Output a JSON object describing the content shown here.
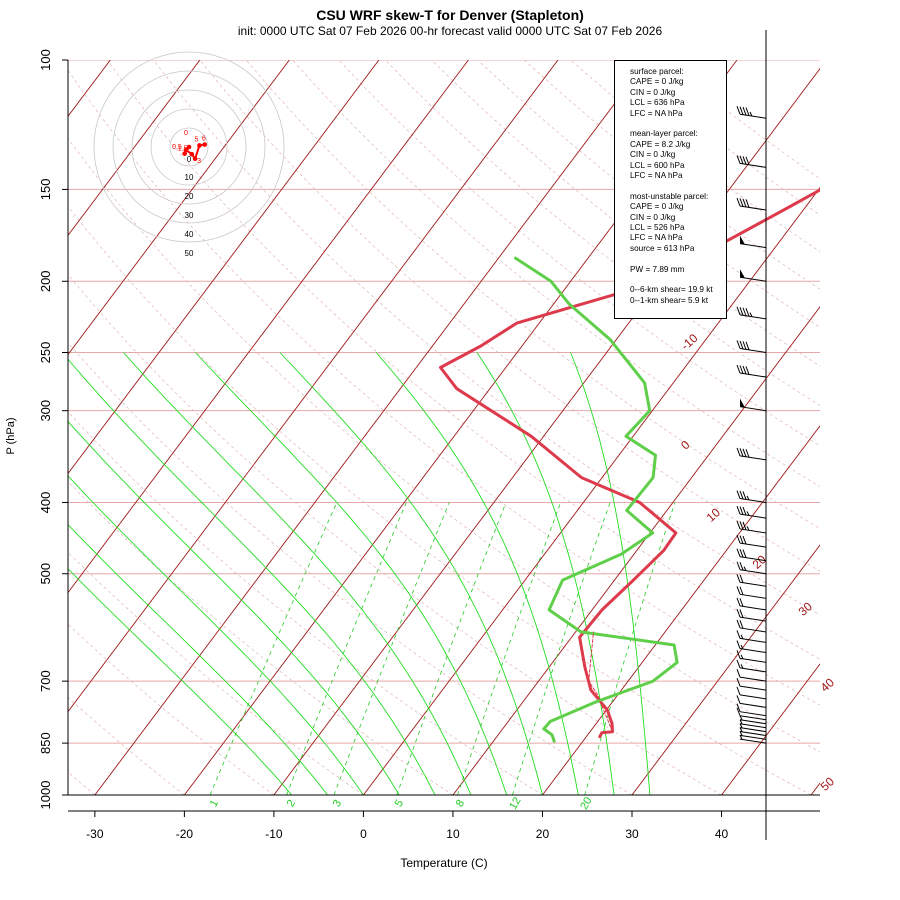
{
  "title": "CSU WRF skew-T for Denver (Stapleton)",
  "subtitle": "init: 0000 UTC Sat 07 Feb 2026    00-hr forecast valid 0000 UTC Sat 07 Feb 2026",
  "info_box": {
    "surface": [
      "surface parcel:",
      "CAPE = 0 J/kg",
      "CIN = 0 J/kg",
      "LCL = 636 hPa",
      "LFC = NA hPa"
    ],
    "mean_layer": [
      "mean-layer parcel:",
      "CAPE = 8.2 J/kg",
      "CIN = 0 J/kg",
      "LCL = 600 hPa",
      "LFC = NA hPa"
    ],
    "most_unstable": [
      "most-unstable parcel:",
      "CAPE = 0 J/kg",
      "CIN = 0 J/kg",
      "LCL = 526 hPa",
      "LFC = NA hPa",
      "source = 613 hPa"
    ],
    "pw": "PW =  7.89 mm",
    "shear": [
      "0--6-km shear= 19.9 kt",
      "0--1-km shear= 5.9 kt"
    ]
  },
  "colors": {
    "temperature": "#dd3a4c",
    "dewpoint": "#5fcf4a",
    "isotherm": "#a01818",
    "isobar": "#e6a8a8",
    "dry_adiabat": "#e3b3b3",
    "moist_adiabat": "#22dd22",
    "mixing_ratio": "#22cc22",
    "hodograph": "#ff0000",
    "hodo_ring": "#c8c8c8"
  },
  "chart_data": {
    "type": "line",
    "xlabel": "Temperature (C)",
    "ylabel": "P (hPa)",
    "xlim": [
      -33,
      51
    ],
    "ylim_hpa": [
      1000,
      100
    ],
    "x_ticks": [
      -30,
      -20,
      -10,
      0,
      10,
      20,
      30,
      40
    ],
    "y_ticks": [
      100,
      150,
      200,
      250,
      300,
      400,
      500,
      700,
      850,
      1000
    ],
    "isobars_hpa": [
      100,
      150,
      200,
      250,
      300,
      400,
      500,
      700,
      850,
      1000
    ],
    "isotherm_labels": [
      -10,
      0,
      10,
      20,
      30,
      40,
      50
    ],
    "mixing_ratio_labels": [
      1,
      2,
      3,
      5,
      8,
      12,
      20
    ],
    "series": [
      {
        "name": "temperature",
        "values_temp_c": [
          21.5,
          21.4,
          22.5,
          21.8,
          20.8,
          20.1,
          16.6,
          14.0,
          10.9,
          11.1,
          12.1,
          13.0,
          12.9,
          6.3,
          -2.3,
          -11.4,
          -23.7,
          -27.3,
          -24.6,
          -22.5,
          -11.4,
          -1.7,
          12.6
        ],
        "values_p_hpa": [
          833,
          823,
          820,
          800,
          780,
          766,
          720,
          670,
          610,
          560,
          510,
          465,
          440,
          400,
          370,
          325,
          280,
          262,
          245,
          228,
          203,
          158,
          108
        ]
      },
      {
        "name": "dewpoint",
        "values_temp_c": [
          16.8,
          16.0,
          14.6,
          14.7,
          18.0,
          22.8,
          23.9,
          22.1,
          10.6,
          5.2,
          4.2,
          8.6,
          10.3,
          5.5,
          5.7,
          4.1,
          -0.8,
          -0.3,
          -3.2,
          -10.7,
          -18.2,
          -22.2,
          -28.1
        ],
        "values_p_hpa": [
          845,
          828,
          813,
          794,
          749,
          700,
          660,
          625,
          600,
          560,
          510,
          470,
          440,
          410,
          370,
          345,
          325,
          300,
          275,
          240,
          215,
          200,
          186
        ]
      },
      {
        "name": "parcel",
        "values_temp_c": [
          22.5,
          17.7,
          15.6,
          12.0
        ],
        "values_p_hpa": [
          820,
          730,
          700,
          600
        ]
      }
    ],
    "wind_barbs": {
      "units": "kt",
      "speed_kt": [
        5,
        5,
        5,
        5,
        5,
        5,
        10,
        10,
        10,
        10,
        10,
        10,
        15,
        15,
        15,
        15,
        20,
        20,
        20,
        20,
        20,
        25,
        30,
        30,
        35,
        35,
        35,
        40,
        50,
        40,
        40,
        45,
        50,
        50,
        40,
        40,
        45
      ],
      "p_hpa": [
        850,
        840,
        830,
        820,
        810,
        800,
        790,
        780,
        760,
        740,
        720,
        700,
        680,
        660,
        640,
        620,
        600,
        580,
        560,
        540,
        520,
        500,
        480,
        460,
        440,
        420,
        400,
        350,
        300,
        270,
        250,
        225,
        200,
        180,
        160,
        140,
        120
      ]
    },
    "hodograph": {
      "ring_labels": [
        "10",
        "20",
        "30",
        "40",
        "50"
      ],
      "point_labels": [
        "0",
        "0.5",
        "1.5",
        "3",
        "5",
        "6"
      ],
      "u_kt": [
        0,
        -2.3,
        -1.6,
        1.5,
        3.2,
        5.5,
        8.3
      ],
      "v_kt": [
        0,
        -3.5,
        -1.6,
        -3.8,
        -6.2,
        0.8,
        1.3
      ]
    }
  }
}
